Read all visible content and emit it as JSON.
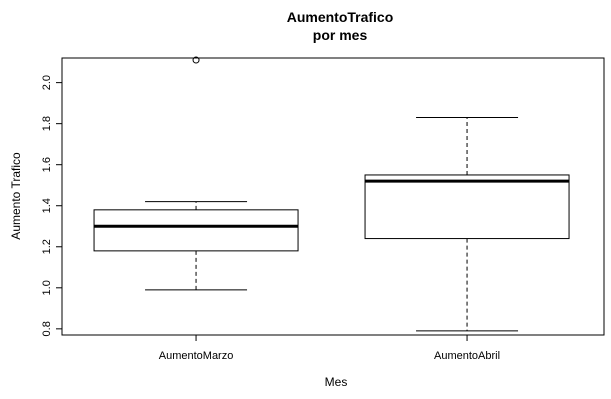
{
  "chart_data": {
    "type": "boxplot",
    "title": "AumentoTrafico",
    "subtitle": "por mes",
    "xlabel": "Mes",
    "ylabel": "Aumento Trafico",
    "ylim": [
      0.77,
      2.12
    ],
    "yticks": [
      "0.8",
      "1.0",
      "1.2",
      "1.4",
      "1.6",
      "1.8",
      "2.0"
    ],
    "categories": [
      "AumentoMarzo",
      "AumentoAbril"
    ],
    "boxes": [
      {
        "name": "AumentoMarzo",
        "whisker_low": 0.99,
        "q1": 1.18,
        "median": 1.3,
        "q3": 1.38,
        "whisker_high": 1.42,
        "outliers": [
          2.11
        ]
      },
      {
        "name": "AumentoAbril",
        "whisker_low": 0.79,
        "q1": 1.24,
        "median": 1.52,
        "q3": 1.55,
        "whisker_high": 1.83,
        "outliers": []
      }
    ],
    "grid": false,
    "legend": "none"
  }
}
